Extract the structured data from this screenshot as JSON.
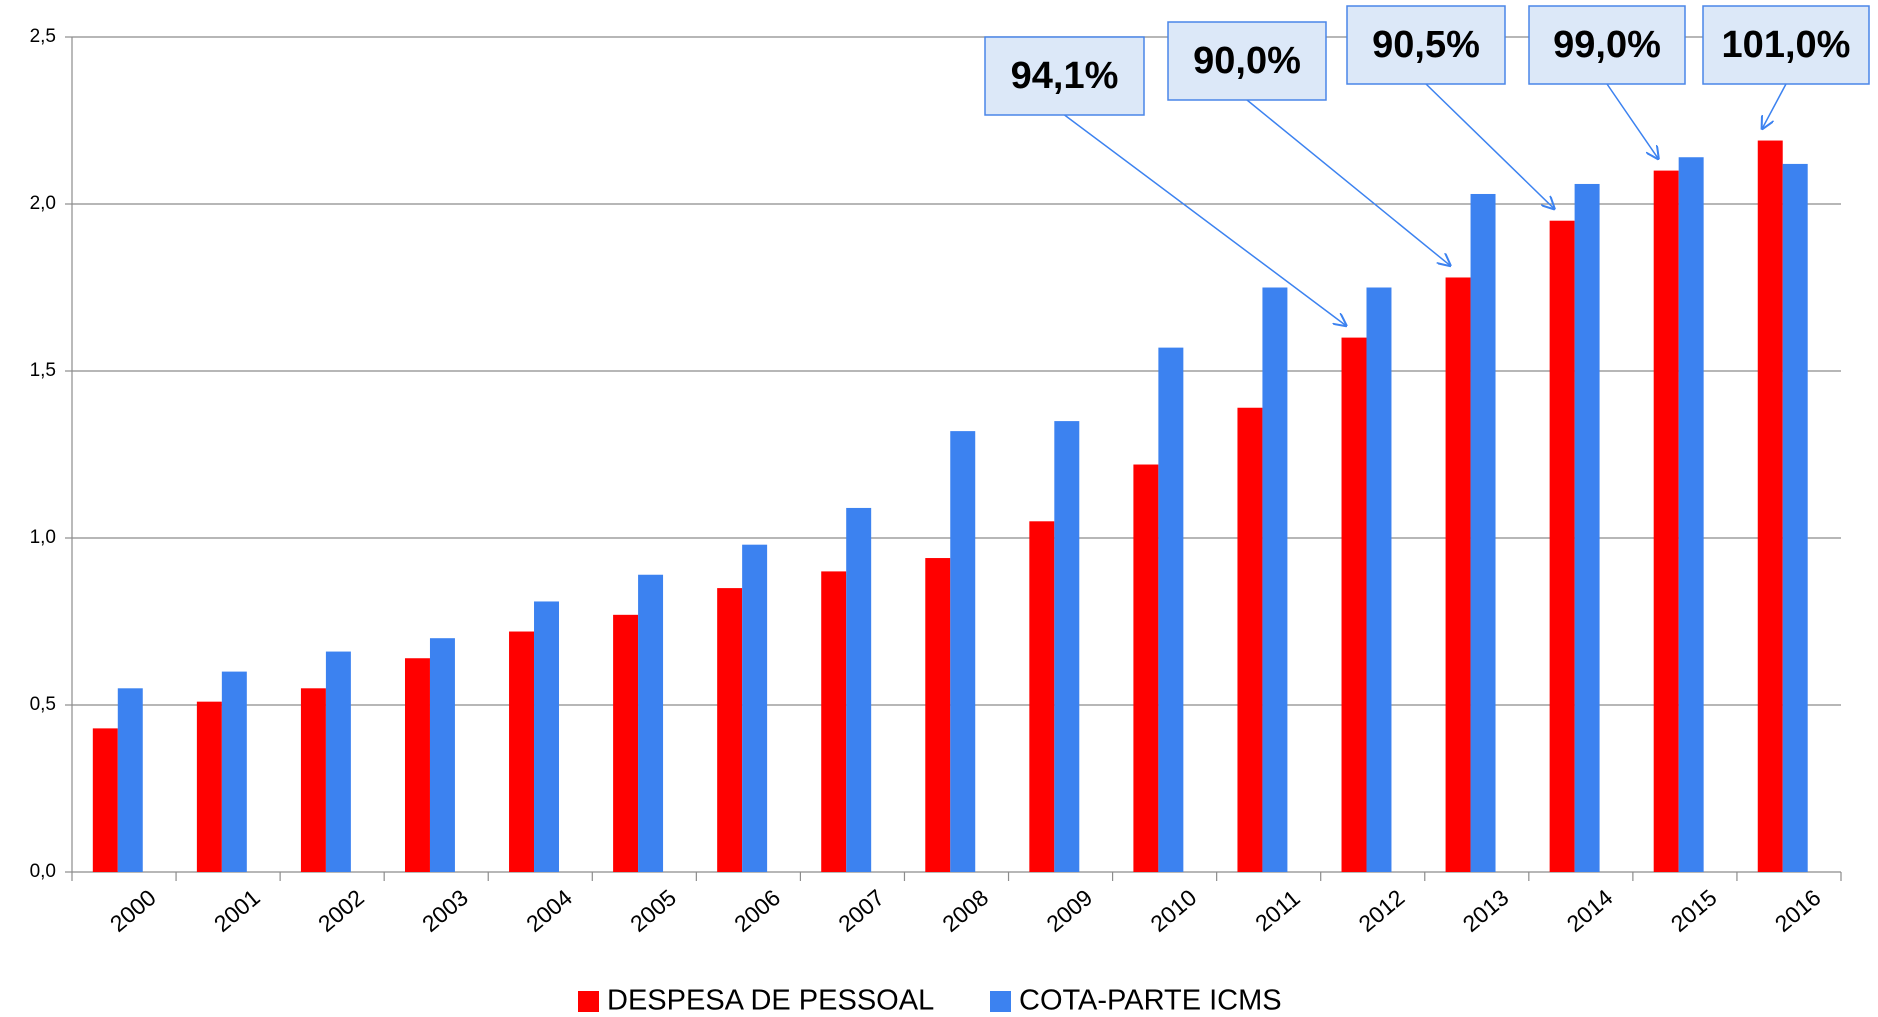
{
  "chart_data": {
    "type": "bar",
    "categories": [
      "2000",
      "2001",
      "2002",
      "2003",
      "2004",
      "2005",
      "2006",
      "2007",
      "2008",
      "2009",
      "2010",
      "2011",
      "2012",
      "2013",
      "2014",
      "2015",
      "2016"
    ],
    "series": [
      {
        "name": "DESPESA DE PESSOAL",
        "color": "#ff0000",
        "values": [
          0.43,
          0.51,
          0.55,
          0.64,
          0.72,
          0.77,
          0.85,
          0.9,
          0.94,
          1.05,
          1.22,
          1.39,
          1.6,
          1.78,
          1.95,
          2.1,
          2.19
        ]
      },
      {
        "name": "COTA-PARTE ICMS",
        "color": "#3c82f0",
        "values": [
          0.55,
          0.6,
          0.66,
          0.7,
          0.81,
          0.89,
          0.98,
          1.09,
          1.32,
          1.35,
          1.57,
          1.75,
          1.75,
          2.03,
          2.06,
          2.14,
          2.12
        ]
      }
    ],
    "ylim": [
      0,
      2.5
    ],
    "yticks": [
      {
        "value": 0,
        "label": "0,0"
      },
      {
        "value": 0.5,
        "label": "0,5"
      },
      {
        "value": 1,
        "label": "1,0"
      },
      {
        "value": 1.5,
        "label": "1,5"
      },
      {
        "value": 2,
        "label": "2,0"
      },
      {
        "value": 2.5,
        "label": "2,5"
      }
    ],
    "grid": true,
    "legend": "bottom",
    "annotations": [
      {
        "text": "94,1%",
        "category": "2012"
      },
      {
        "text": "90,0%",
        "category": "2013"
      },
      {
        "text": "90,5%",
        "category": "2014"
      },
      {
        "text": "99,0%",
        "category": "2015"
      },
      {
        "text": "101,0%",
        "category": "2016"
      }
    ]
  }
}
